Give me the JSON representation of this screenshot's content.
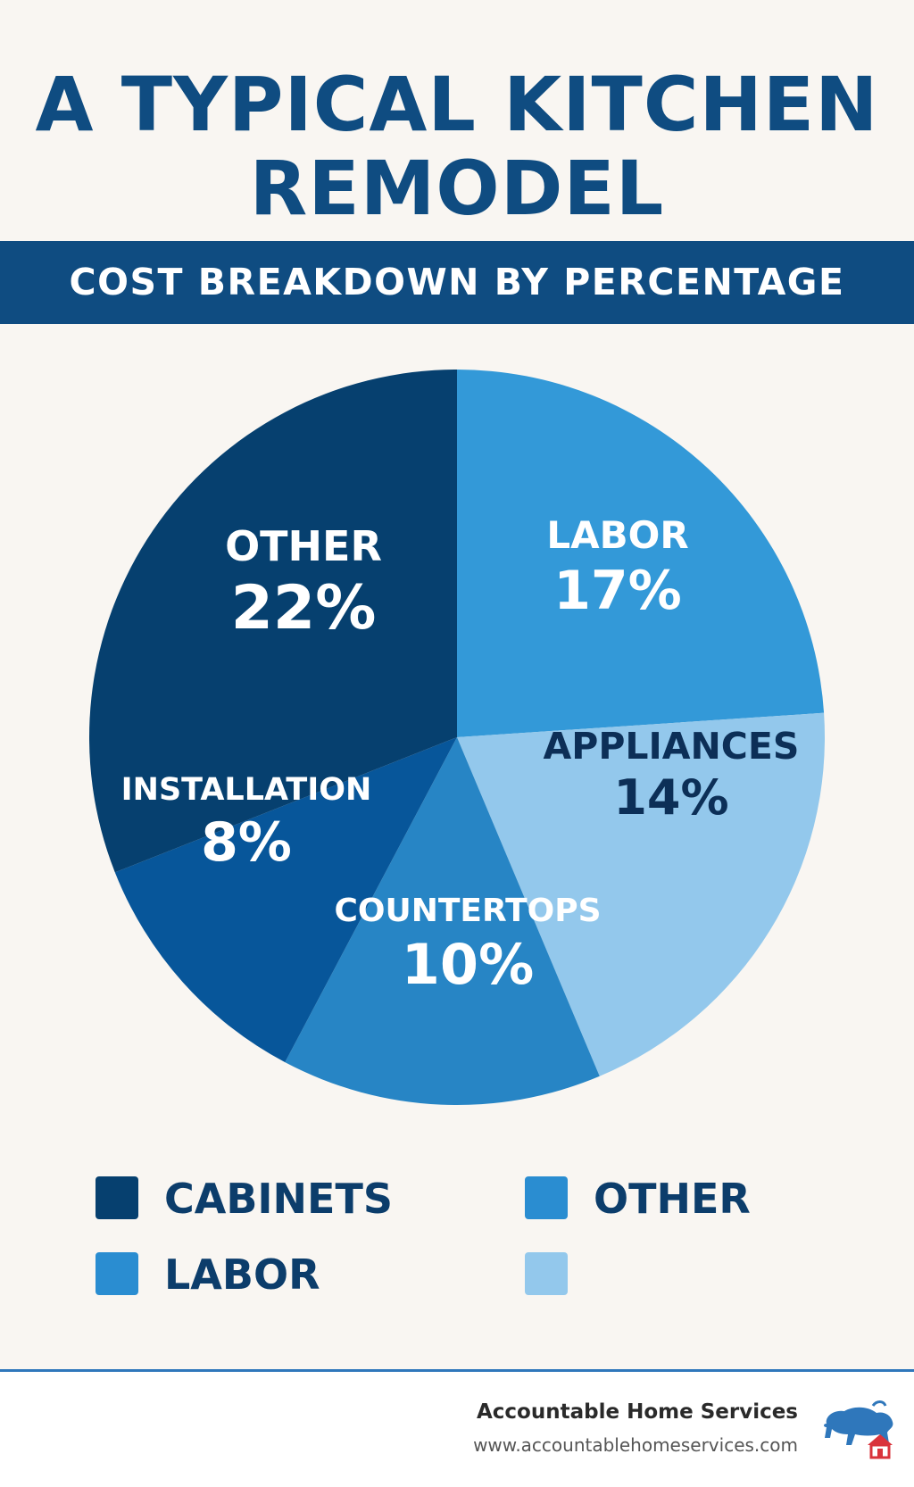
{
  "title": {
    "line1": "A TYPICAL KITCHEN",
    "line2": "REMODEL"
  },
  "subtitle": "COST BREAKDOWN BY PERCENTAGE",
  "chart_data": {
    "type": "pie",
    "title": "A TYPICAL KITCHEN REMODEL",
    "subtitle": "COST BREAKDOWN BY PERCENTAGE",
    "slices": [
      {
        "label": "LABOR",
        "value": 17,
        "display": "17%",
        "color": "#3399d8",
        "text_color": "#ffffff"
      },
      {
        "label": "APPLIANCES",
        "value": 14,
        "display": "14%",
        "color": "#93c8ec",
        "text_color": "#0c2f57"
      },
      {
        "label": "COUNTERTOPS",
        "value": 10,
        "display": "10%",
        "color": "#2785c5",
        "text_color": "#ffffff"
      },
      {
        "label": "INSTALLATION",
        "value": 8,
        "display": "8%",
        "color": "#07569a",
        "text_color": "#ffffff"
      },
      {
        "label": "OTHER",
        "value": 22,
        "display": "22%",
        "color": "#06406f",
        "text_color": "#ffffff"
      }
    ],
    "legend": [
      {
        "label": "CABINETS",
        "color": "#06406f"
      },
      {
        "label": "OTHER",
        "color": "#2a8dd1"
      },
      {
        "label": "LABOR",
        "color": "#2a8dd1"
      },
      {
        "label": "",
        "color": "#93c8ec"
      }
    ]
  },
  "footer": {
    "company": "Accountable Home Services",
    "url": "www.accountablehomeservices.com",
    "logo_icon": "bison-house-logo-icon"
  }
}
